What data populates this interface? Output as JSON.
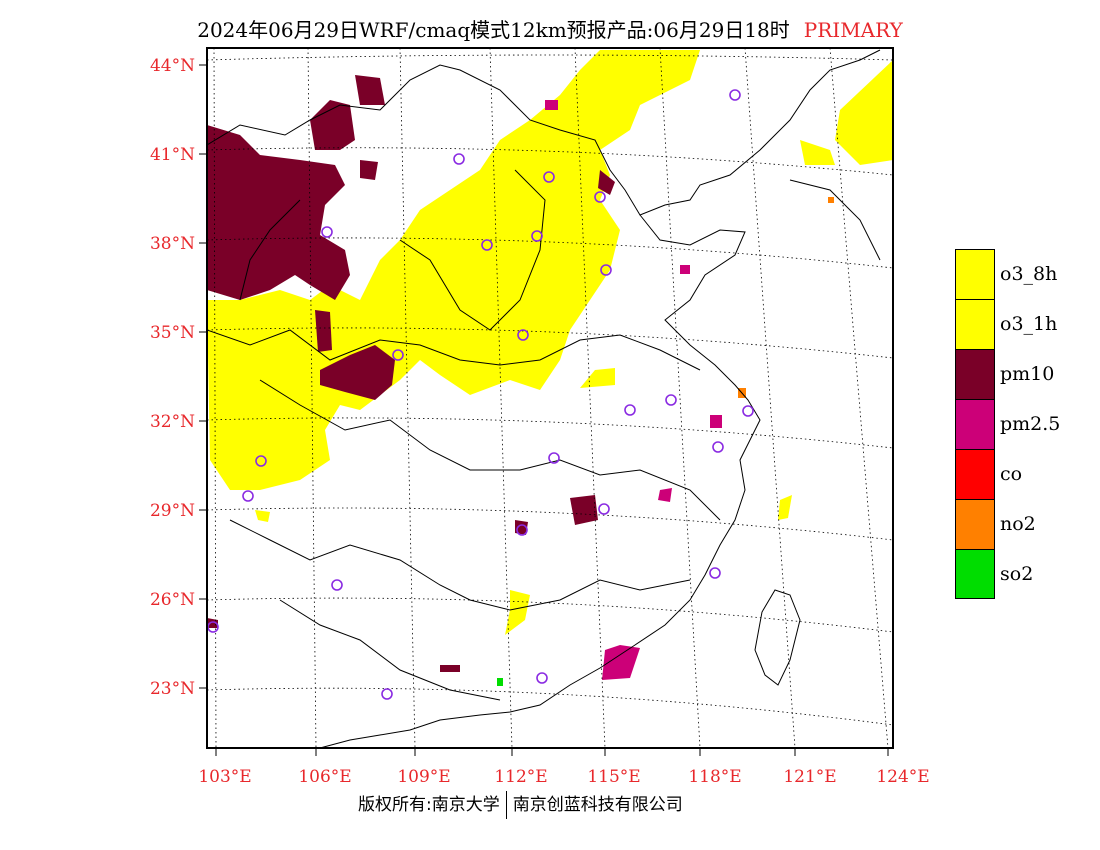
{
  "title": {
    "text": "2024年06月29日WRF/cmaq模式12km预报产品:06月29日18时",
    "tag": "PRIMARY"
  },
  "axes": {
    "lat_labels": [
      "44°N",
      "41°N",
      "38°N",
      "35°N",
      "32°N",
      "29°N",
      "26°N",
      "23°N"
    ],
    "lon_labels": [
      "103°E",
      "106°E",
      "109°E",
      "112°E",
      "115°E",
      "118°E",
      "121°E",
      "124°E"
    ]
  },
  "legend": [
    {
      "label": "o3_8h",
      "color": "#ffff00"
    },
    {
      "label": "o3_1h",
      "color": "#ffff00"
    },
    {
      "label": "pm10",
      "color": "#7a0028"
    },
    {
      "label": "pm2.5",
      "color": "#cc0078"
    },
    {
      "label": "co",
      "color": "#ff0000"
    },
    {
      "label": "no2",
      "color": "#ff8000"
    },
    {
      "label": "so2",
      "color": "#00dd00"
    }
  ],
  "footer": {
    "left": "版权所有:南京大学",
    "right": "南京创蓝科技有限公司"
  }
}
